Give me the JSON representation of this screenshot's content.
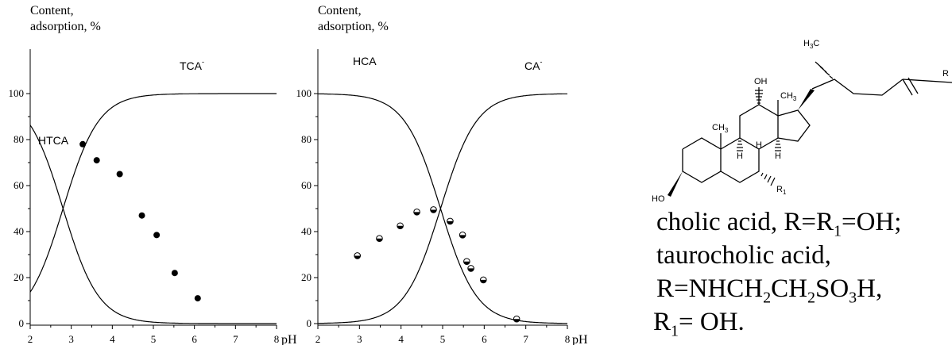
{
  "chart_data": [
    {
      "type": "line",
      "title": "",
      "ylabel_lines": [
        "Content,",
        "adsorption, %"
      ],
      "xlabel": "pH",
      "xlim": [
        2,
        8
      ],
      "ylim": [
        0,
        100
      ],
      "x_ticks": [
        2,
        3,
        4,
        5,
        6,
        7,
        8
      ],
      "y_ticks": [
        0,
        20,
        40,
        60,
        80,
        100
      ],
      "x_tick_labels": [
        "2",
        "3",
        "4",
        "5",
        "6",
        "7",
        "8"
      ],
      "y_tick_labels": [
        "0",
        "20",
        "40",
        "60",
        "80",
        "100"
      ],
      "pKa": 2.8,
      "series": [
        {
          "name": "HTCA",
          "label_main": "HTCA",
          "label_sup": "",
          "kind": "curve",
          "form": "acid"
        },
        {
          "name": "TCA-",
          "label_main": "TCA",
          "label_sup": "-",
          "kind": "curve",
          "form": "anion"
        },
        {
          "kind": "points",
          "marker": "filled",
          "x": [
            3.28,
            3.62,
            4.18,
            4.72,
            5.08,
            5.52,
            6.08
          ],
          "y": [
            78,
            71,
            65,
            47,
            38.5,
            22,
            11
          ]
        }
      ]
    },
    {
      "type": "line",
      "title": "",
      "ylabel_lines": [
        "Content,",
        "adsorption, %"
      ],
      "xlabel": "pH",
      "xlim": [
        2,
        8
      ],
      "ylim": [
        0,
        100
      ],
      "x_ticks": [
        2,
        3,
        4,
        5,
        6,
        7,
        8
      ],
      "y_ticks": [
        0,
        20,
        40,
        60,
        80,
        100
      ],
      "x_tick_labels": [
        "2",
        "3",
        "4",
        "5",
        "6",
        "7",
        "8"
      ],
      "y_tick_labels": [
        "0",
        "20",
        "40",
        "60",
        "80",
        "100"
      ],
      "pKa": 4.95,
      "series": [
        {
          "name": "HCA",
          "label_main": "HCA",
          "label_sup": "",
          "kind": "curve",
          "form": "acid"
        },
        {
          "name": "CA-",
          "label_main": "CA",
          "label_sup": "-",
          "kind": "curve",
          "form": "anion"
        },
        {
          "kind": "points",
          "marker": "half",
          "x": [
            2.95,
            3.48,
            3.98,
            4.38,
            4.78,
            5.18,
            5.48,
            5.58,
            5.68,
            5.98,
            6.78
          ],
          "y": [
            29.5,
            37,
            42.5,
            48.5,
            49.5,
            44.5,
            38.5,
            27,
            24,
            19,
            2
          ]
        }
      ]
    }
  ],
  "structure": {
    "labels": {
      "oh_top": "OH",
      "h3c": "H",
      "h3c_sub": "3",
      "h3c_tail": "C",
      "ch3_upper": "CH",
      "ch3_upper_sub": "3",
      "ch3_lower": "CH",
      "ch3_lower_sub": "3",
      "h_c": "H",
      "h_b": "H",
      "h_d": "H",
      "ho": "HO",
      "r": "R",
      "r1": "R",
      "r1_sub": "1"
    }
  },
  "caption": {
    "line1": {
      "a": "cholic acid, R=R",
      "a_sub": "1",
      "b": "=OH;"
    },
    "line2": {
      "a": "taurocholic acid,"
    },
    "line3": {
      "a": "R=NHCH",
      "s1": "2",
      "b": "CH",
      "s2": "2",
      "c": "SO",
      "s3": "3",
      "d": "H,"
    },
    "line4": {
      "a": "R",
      "a_sub": "1",
      "b": "= OH."
    }
  },
  "colors": {
    "ink": "#000000",
    "background": "#ffffff"
  }
}
